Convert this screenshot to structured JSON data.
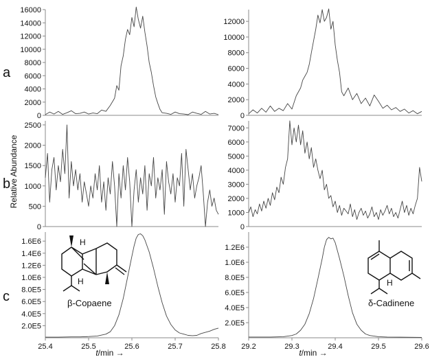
{
  "figure": {
    "row_labels": [
      "a",
      "b",
      "c"
    ],
    "y_axis_label": "Relative Abundance",
    "x_axis_label_italic": "t",
    "x_axis_label_rest": "/min →"
  },
  "compounds": {
    "left": {
      "name": "β-Copaene",
      "H_top": "H",
      "H_bottom": "H"
    },
    "right": {
      "name": "δ-Cadinene",
      "H_bottom": "H"
    }
  },
  "chart_data": [
    {
      "type": "line",
      "id": "a-left",
      "xlim": [
        25.4,
        25.8
      ],
      "ylim": [
        0,
        16000
      ],
      "yticks": [
        0,
        2000,
        4000,
        6000,
        8000,
        10000,
        12000,
        14000,
        16000
      ],
      "ytick_labels": [
        "0",
        "2000",
        "4000",
        "6000",
        "8000",
        "10000",
        "12000",
        "14000",
        "16000"
      ],
      "x": [
        25.4,
        25.41,
        25.42,
        25.43,
        25.44,
        25.45,
        25.46,
        25.47,
        25.48,
        25.49,
        25.5,
        25.51,
        25.52,
        25.53,
        25.54,
        25.55,
        25.56,
        25.565,
        25.57,
        25.575,
        25.58,
        25.585,
        25.59,
        25.595,
        25.6,
        25.605,
        25.61,
        25.615,
        25.62,
        25.625,
        25.63,
        25.635,
        25.64,
        25.645,
        25.65,
        25.655,
        25.66,
        25.665,
        25.67,
        25.68,
        25.69,
        25.7,
        25.71,
        25.72,
        25.73,
        25.74,
        25.75,
        25.76,
        25.77,
        25.78,
        25.79,
        25.8
      ],
      "y": [
        100,
        500,
        200,
        600,
        150,
        400,
        700,
        250,
        300,
        500,
        200,
        350,
        250,
        800,
        600,
        1500,
        2600,
        4500,
        3800,
        7500,
        9000,
        11500,
        13000,
        12200,
        14800,
        13400,
        16400,
        14500,
        13200,
        15000,
        12600,
        10500,
        8000,
        6500,
        4500,
        2800,
        1800,
        900,
        400,
        300,
        150,
        500,
        250,
        200,
        100,
        500,
        300,
        150,
        600,
        200,
        300,
        100
      ]
    },
    {
      "type": "line",
      "id": "a-right",
      "xlim": [
        29.2,
        29.6
      ],
      "ylim": [
        0,
        13500
      ],
      "yticks": [
        0,
        2000,
        4000,
        6000,
        8000,
        10000,
        12000
      ],
      "ytick_labels": [
        "0",
        "2000",
        "4000",
        "6000",
        "8000",
        "10000",
        "12000"
      ],
      "x": [
        29.2,
        29.21,
        29.22,
        29.23,
        29.24,
        29.25,
        29.26,
        29.27,
        29.28,
        29.29,
        29.3,
        29.31,
        29.32,
        29.325,
        29.33,
        29.335,
        29.34,
        29.345,
        29.35,
        29.355,
        29.36,
        29.365,
        29.37,
        29.375,
        29.38,
        29.385,
        29.39,
        29.395,
        29.4,
        29.405,
        29.41,
        29.415,
        29.42,
        29.43,
        29.44,
        29.45,
        29.46,
        29.47,
        29.48,
        29.49,
        29.5,
        29.51,
        29.52,
        29.53,
        29.54,
        29.55,
        29.56,
        29.57,
        29.58,
        29.59,
        29.6
      ],
      "y": [
        200,
        700,
        300,
        900,
        400,
        1200,
        500,
        900,
        600,
        1500,
        800,
        2500,
        3500,
        4500,
        5000,
        5500,
        6500,
        8000,
        9500,
        11000,
        12800,
        11800,
        13500,
        12000,
        12500,
        13600,
        11000,
        12000,
        9000,
        7000,
        5500,
        3000,
        2500,
        3500,
        2000,
        2800,
        1500,
        2200,
        1200,
        2600,
        1800,
        900,
        1300,
        700,
        1000,
        500,
        800,
        300,
        600,
        200,
        500
      ]
    },
    {
      "type": "line",
      "id": "b-left",
      "xlim": [
        25.4,
        25.8
      ],
      "ylim": [
        0,
        2600
      ],
      "yticks": [
        0,
        500,
        1000,
        1500,
        2000,
        2500
      ],
      "ytick_labels": [
        "0",
        "500",
        "1000",
        "1500",
        "2000",
        "2500"
      ],
      "x": [
        25.4,
        25.405,
        25.41,
        25.415,
        25.42,
        25.425,
        25.43,
        25.435,
        25.44,
        25.445,
        25.45,
        25.455,
        25.46,
        25.465,
        25.47,
        25.475,
        25.48,
        25.485,
        25.49,
        25.495,
        25.5,
        25.505,
        25.51,
        25.515,
        25.52,
        25.525,
        25.53,
        25.535,
        25.54,
        25.545,
        25.55,
        25.555,
        25.56,
        25.565,
        25.57,
        25.575,
        25.58,
        25.585,
        25.59,
        25.595,
        25.6,
        25.605,
        25.61,
        25.615,
        25.62,
        25.625,
        25.63,
        25.635,
        25.64,
        25.645,
        25.65,
        25.655,
        25.66,
        25.665,
        25.67,
        25.675,
        25.68,
        25.685,
        25.69,
        25.695,
        25.7,
        25.705,
        25.71,
        25.715,
        25.72,
        25.725,
        25.73,
        25.735,
        25.74,
        25.745,
        25.75,
        25.755,
        25.76,
        25.765,
        25.77,
        25.775,
        25.78,
        25.785,
        25.79,
        25.795,
        25.8
      ],
      "y": [
        1200,
        1800,
        600,
        1400,
        1700,
        900,
        1500,
        1100,
        1900,
        1300,
        2500,
        700,
        1600,
        1000,
        1400,
        900,
        1300,
        600,
        1100,
        800,
        500,
        1000,
        700,
        1300,
        900,
        1500,
        600,
        1100,
        400,
        1200,
        800,
        1600,
        1000,
        0,
        1300,
        700,
        1500,
        900,
        1700,
        1100,
        0,
        900,
        1400,
        600,
        1200,
        800,
        1500,
        400,
        1300,
        1000,
        1700,
        700,
        1200,
        900,
        1400,
        300,
        1600,
        1100,
        800,
        1300,
        600,
        1200,
        1000,
        1800,
        500,
        1900,
        1400,
        900,
        1300,
        700,
        1000,
        1200,
        1500,
        800,
        0,
        600,
        900,
        500,
        700,
        400,
        300
      ]
    },
    {
      "type": "line",
      "id": "b-right",
      "xlim": [
        29.2,
        29.6
      ],
      "ylim": [
        0,
        7500
      ],
      "yticks": [
        0,
        1000,
        2000,
        3000,
        4000,
        5000,
        6000,
        7000
      ],
      "ytick_labels": [
        "0",
        "1000",
        "2000",
        "3000",
        "4000",
        "5000",
        "6000",
        "7000"
      ],
      "x": [
        29.2,
        29.205,
        29.21,
        29.215,
        29.22,
        29.225,
        29.23,
        29.235,
        29.24,
        29.245,
        29.25,
        29.255,
        29.26,
        29.265,
        29.27,
        29.275,
        29.28,
        29.285,
        29.29,
        29.295,
        29.3,
        29.305,
        29.31,
        29.315,
        29.32,
        29.325,
        29.33,
        29.335,
        29.34,
        29.345,
        29.35,
        29.355,
        29.36,
        29.365,
        29.37,
        29.375,
        29.38,
        29.385,
        29.39,
        29.395,
        29.4,
        29.405,
        29.41,
        29.415,
        29.42,
        29.425,
        29.43,
        29.435,
        29.44,
        29.445,
        29.45,
        29.455,
        29.46,
        29.465,
        29.47,
        29.475,
        29.48,
        29.485,
        29.49,
        29.495,
        29.5,
        29.505,
        29.51,
        29.515,
        29.52,
        29.525,
        29.53,
        29.535,
        29.54,
        29.545,
        29.55,
        29.555,
        29.56,
        29.565,
        29.57,
        29.575,
        29.58,
        29.585,
        29.59,
        29.595,
        29.6
      ],
      "y": [
        1000,
        1400,
        700,
        1200,
        900,
        1600,
        1100,
        1800,
        1300,
        2000,
        1500,
        2400,
        1900,
        2800,
        2400,
        3500,
        3000,
        4200,
        4800,
        7500,
        5800,
        7000,
        6000,
        7200,
        5800,
        6800,
        5200,
        6000,
        4800,
        5600,
        4200,
        4800,
        4000,
        3400,
        4000,
        2600,
        3000,
        2000,
        2200,
        1400,
        1800,
        1000,
        1500,
        800,
        1300,
        1100,
        900,
        1600,
        700,
        1200,
        500,
        1000,
        1300,
        800,
        1100,
        600,
        900,
        1400,
        700,
        1000,
        500,
        1200,
        800,
        1100,
        1500,
        900,
        1300,
        700,
        1000,
        600,
        1200,
        1800,
        1000,
        1500,
        800,
        1300,
        900,
        1500,
        2000,
        4200,
        3200
      ]
    },
    {
      "type": "line",
      "id": "c-left",
      "xlim": [
        25.4,
        25.8
      ],
      "ylim": [
        0,
        1750000.0
      ],
      "yticks": [
        200000,
        400000,
        600000,
        800000,
        1000000,
        1200000,
        1400000,
        1600000
      ],
      "ytick_labels": [
        "2.0E5",
        "4.0E5",
        "6.0E5",
        "8.0E5",
        "1.0E6",
        "1.2E6",
        "1.4E6",
        "1.6E6"
      ],
      "x": [
        25.4,
        25.43,
        25.46,
        25.48,
        25.5,
        25.52,
        25.54,
        25.55,
        25.56,
        25.57,
        25.58,
        25.59,
        25.6,
        25.605,
        25.61,
        25.615,
        25.62,
        25.625,
        25.63,
        25.64,
        25.65,
        25.66,
        25.67,
        25.68,
        25.69,
        25.7,
        25.71,
        25.72,
        25.73,
        25.74,
        25.75,
        25.76,
        25.78,
        25.79,
        25.8
      ],
      "y": [
        10000,
        10000,
        15000,
        15000,
        20000,
        30000,
        60000,
        100000,
        200000,
        380000,
        650000,
        1000000,
        1350000,
        1520000,
        1650000,
        1710000,
        1720000,
        1690000,
        1620000,
        1420000,
        1150000,
        850000,
        580000,
        360000,
        220000,
        130000,
        80000,
        60000,
        40000,
        35000,
        40000,
        70000,
        110000,
        140000,
        160000
      ]
    },
    {
      "type": "line",
      "id": "c-right",
      "xlim": [
        29.2,
        29.6
      ],
      "ylim": [
        0,
        1400000.0
      ],
      "yticks": [
        200000,
        400000,
        600000,
        800000,
        1000000,
        1200000
      ],
      "ytick_labels": [
        "2.0E5",
        "4.0E5",
        "6.0E5",
        "8.0E5",
        "1.0E6",
        "1.2E6"
      ],
      "x": [
        29.2,
        29.25,
        29.28,
        29.3,
        29.31,
        29.32,
        29.33,
        29.34,
        29.35,
        29.36,
        29.37,
        29.375,
        29.38,
        29.385,
        29.39,
        29.395,
        29.4,
        29.41,
        29.42,
        29.43,
        29.44,
        29.45,
        29.46,
        29.47,
        29.48,
        29.5,
        29.52,
        29.55,
        29.6
      ],
      "y": [
        10000,
        10000,
        15000,
        30000,
        50000,
        100000,
        180000,
        320000,
        520000,
        780000,
        1050000,
        1200000,
        1300000,
        1330000,
        1310000,
        1320000,
        1260000,
        1050000,
        820000,
        560000,
        330000,
        180000,
        100000,
        50000,
        30000,
        15000,
        10000,
        8000,
        5000
      ]
    }
  ]
}
